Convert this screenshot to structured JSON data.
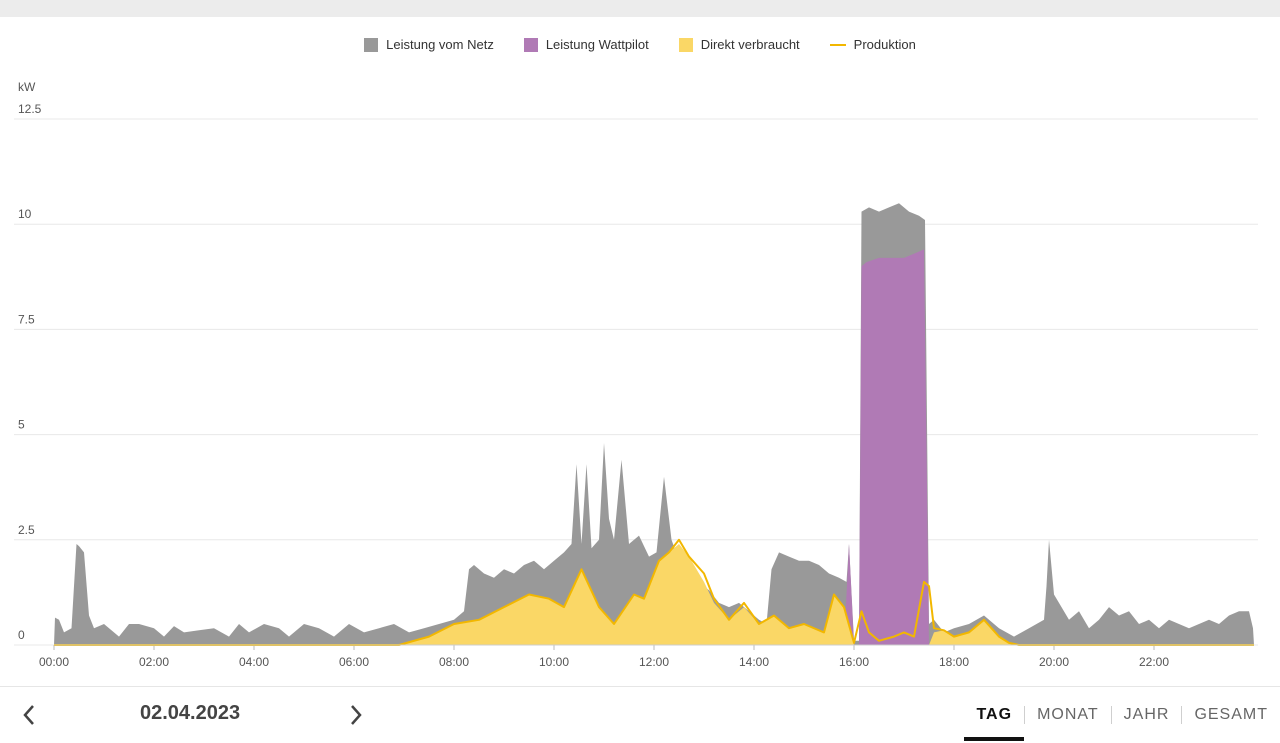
{
  "legend": [
    {
      "label": "Leistung vom Netz",
      "color": "#999999",
      "kind": "swatch"
    },
    {
      "label": "Leistung Wattpilot",
      "color": "#b07ab5",
      "kind": "swatch"
    },
    {
      "label": "Direkt verbraucht",
      "color": "#fad766",
      "kind": "swatch"
    },
    {
      "label": "Produktion",
      "color": "#f2b700",
      "kind": "line"
    }
  ],
  "navigation": {
    "date": "02.04.2023",
    "prev_icon": "chevron-left-icon",
    "next_icon": "chevron-right-icon"
  },
  "tabs": [
    {
      "label": "TAG",
      "active": true
    },
    {
      "label": "MONAT",
      "active": false
    },
    {
      "label": "JAHR",
      "active": false
    },
    {
      "label": "GESAMT",
      "active": false
    }
  ],
  "chart_data": {
    "type": "area",
    "ylabel": "kW",
    "ylim": [
      0,
      12.5
    ],
    "yticks": [
      "0",
      "2.5",
      "5",
      "7.5",
      "10",
      "12.5"
    ],
    "xlim_hours": [
      0,
      24
    ],
    "xticks": [
      "00:00",
      "02:00",
      "04:00",
      "06:00",
      "08:00",
      "10:00",
      "12:00",
      "14:00",
      "16:00",
      "18:00",
      "20:00",
      "22:00"
    ],
    "grid": true,
    "legend_position": "top-center",
    "series": [
      {
        "name": "Direkt verbraucht",
        "color": "#fad766",
        "x": [
          0,
          6.9,
          7.5,
          8.0,
          8.5,
          9.0,
          9.5,
          9.9,
          10.2,
          10.55,
          10.9,
          11.2,
          11.6,
          11.8,
          12.1,
          12.3,
          12.5,
          12.7,
          13.0,
          13.2,
          13.5,
          13.8,
          14.1,
          14.4,
          14.7,
          15.0,
          15.4,
          15.6,
          15.8,
          15.9,
          16.0,
          17.5,
          17.6,
          17.8,
          18.0,
          18.3,
          18.6,
          18.9,
          19.1,
          19.3,
          24
        ],
        "values": [
          0,
          0,
          0.2,
          0.5,
          0.6,
          0.9,
          1.2,
          1.1,
          0.9,
          1.8,
          0.9,
          0.5,
          1.2,
          1.1,
          2.0,
          2.2,
          2.4,
          2.1,
          1.5,
          1.0,
          0.6,
          0.9,
          0.5,
          0.7,
          0.4,
          0.5,
          0.3,
          1.2,
          0.9,
          0.5,
          0,
          0,
          0.3,
          0.35,
          0.2,
          0.3,
          0.6,
          0.2,
          0.05,
          0,
          0
        ]
      },
      {
        "name": "Leistung Wattpilot",
        "color": "#b07ab5",
        "x": [
          15.8,
          15.9,
          16.0,
          16.1,
          16.15,
          16.25,
          16.5,
          16.8,
          17.0,
          17.2,
          17.4,
          17.5,
          17.55
        ],
        "values": [
          0,
          2.4,
          0,
          0,
          9.0,
          9.1,
          9.2,
          9.2,
          9.2,
          9.3,
          9.4,
          0,
          0
        ]
      },
      {
        "name": "Leistung vom Netz",
        "color": "#999999",
        "x": [
          0,
          0.02,
          0.1,
          0.2,
          0.35,
          0.45,
          0.5,
          0.6,
          0.7,
          0.8,
          1.0,
          1.3,
          1.5,
          1.7,
          2.0,
          2.2,
          2.4,
          2.6,
          2.9,
          3.2,
          3.5,
          3.7,
          3.9,
          4.2,
          4.5,
          4.7,
          5.0,
          5.3,
          5.6,
          5.9,
          6.2,
          6.5,
          6.8,
          7.1,
          7.4,
          7.7,
          8.0,
          8.2,
          8.3,
          8.4,
          8.6,
          8.8,
          9.0,
          9.2,
          9.4,
          9.6,
          9.8,
          10.0,
          10.2,
          10.35,
          10.45,
          10.55,
          10.65,
          10.75,
          10.9,
          11.0,
          11.1,
          11.2,
          11.35,
          11.5,
          11.7,
          11.9,
          12.05,
          12.2,
          12.35,
          12.5,
          12.7,
          12.9,
          13.1,
          13.3,
          13.5,
          13.7,
          13.9,
          14.1,
          14.25,
          14.35,
          14.5,
          14.7,
          14.9,
          15.1,
          15.3,
          15.5,
          15.7,
          15.85,
          15.9,
          16.0,
          16.1,
          16.15,
          16.3,
          16.5,
          16.7,
          16.9,
          17.1,
          17.3,
          17.42,
          17.5,
          17.6,
          17.8,
          18.0,
          18.3,
          18.6,
          18.9,
          19.2,
          19.5,
          19.8,
          19.85,
          19.9,
          20.0,
          20.15,
          20.3,
          20.5,
          20.7,
          20.9,
          21.1,
          21.3,
          21.5,
          21.7,
          21.9,
          22.1,
          22.3,
          22.5,
          22.7,
          22.9,
          23.1,
          23.3,
          23.5,
          23.7,
          23.9,
          23.98,
          24
        ],
        "values": [
          0,
          0.65,
          0.6,
          0.3,
          0.4,
          2.4,
          2.35,
          2.2,
          0.7,
          0.4,
          0.5,
          0.2,
          0.5,
          0.5,
          0.4,
          0.2,
          0.45,
          0.3,
          0.35,
          0.4,
          0.2,
          0.5,
          0.3,
          0.5,
          0.4,
          0.2,
          0.5,
          0.4,
          0.2,
          0.5,
          0.3,
          0.4,
          0.5,
          0.3,
          0.4,
          0.5,
          0.6,
          0.8,
          1.8,
          1.9,
          1.7,
          1.6,
          1.8,
          1.7,
          1.9,
          2.0,
          1.8,
          2.0,
          2.2,
          2.4,
          4.3,
          2.4,
          4.3,
          2.3,
          2.5,
          4.8,
          3.0,
          2.5,
          4.4,
          2.4,
          2.6,
          2.1,
          2.2,
          4.0,
          2.5,
          2.0,
          1.8,
          1.5,
          1.3,
          1.0,
          0.9,
          1.0,
          0.8,
          0.6,
          0.5,
          1.8,
          2.2,
          2.1,
          2.0,
          2.0,
          1.9,
          1.7,
          1.6,
          1.5,
          2.4,
          0.1,
          0.1,
          10.3,
          10.4,
          10.3,
          10.4,
          10.5,
          10.3,
          10.2,
          10.1,
          0.5,
          0.6,
          0.3,
          0.4,
          0.5,
          0.7,
          0.4,
          0.2,
          0.4,
          0.6,
          1.4,
          2.5,
          1.2,
          0.9,
          0.6,
          0.8,
          0.4,
          0.6,
          0.9,
          0.7,
          0.8,
          0.5,
          0.6,
          0.4,
          0.6,
          0.5,
          0.4,
          0.5,
          0.6,
          0.5,
          0.7,
          0.8,
          0.8,
          0.4,
          0
        ]
      },
      {
        "name": "Produktion",
        "color": "#f2b700",
        "type": "line",
        "x": [
          0,
          6.9,
          7.5,
          8.0,
          8.5,
          9.0,
          9.5,
          9.9,
          10.2,
          10.55,
          10.9,
          11.2,
          11.6,
          11.8,
          12.1,
          12.3,
          12.5,
          12.7,
          13.0,
          13.2,
          13.5,
          13.8,
          14.1,
          14.4,
          14.7,
          15.0,
          15.4,
          15.6,
          15.8,
          16.0,
          16.15,
          16.3,
          16.5,
          16.8,
          17.0,
          17.2,
          17.4,
          17.5,
          17.6,
          17.8,
          18.0,
          18.3,
          18.6,
          18.9,
          19.1,
          19.3,
          24
        ],
        "values": [
          0,
          0,
          0.2,
          0.5,
          0.6,
          0.9,
          1.2,
          1.1,
          0.9,
          1.8,
          0.9,
          0.5,
          1.2,
          1.1,
          2.0,
          2.2,
          2.5,
          2.1,
          1.7,
          1.1,
          0.6,
          1.0,
          0.5,
          0.7,
          0.4,
          0.5,
          0.3,
          1.2,
          0.9,
          0.05,
          0.8,
          0.3,
          0.1,
          0.2,
          0.3,
          0.2,
          1.5,
          1.4,
          0.4,
          0.35,
          0.2,
          0.3,
          0.6,
          0.2,
          0.05,
          0,
          0
        ]
      }
    ]
  }
}
